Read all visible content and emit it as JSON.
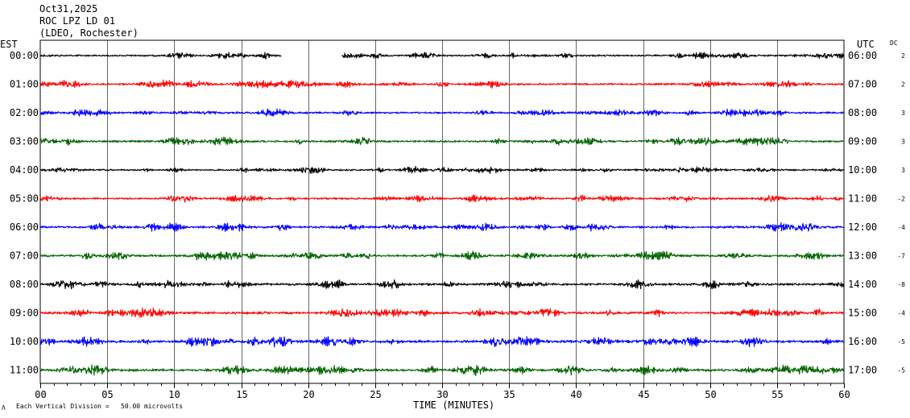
{
  "header": {
    "date": "Oct31,2025",
    "station": "ROC LPZ LD 01",
    "network": "(LDEO, Rochester)"
  },
  "labels": {
    "left_tz": "EST",
    "right_tz": "UTC",
    "dc_header": "DC",
    "xlabel": "TIME (MINUTES)",
    "footnote": "Each Vertical Division =   50.00 microvolts",
    "footnote_mark": "Λ"
  },
  "chart_data": {
    "type": "line",
    "title": "ROC LPZ LD 01",
    "xlabel": "TIME (MINUTES)",
    "ylabel": "",
    "xlim": [
      0,
      60
    ],
    "x_ticks": [
      "00",
      "05",
      "10",
      "15",
      "20",
      "25",
      "30",
      "35",
      "40",
      "45",
      "50",
      "55",
      "60"
    ],
    "grid": true,
    "trace_colors": [
      "#000000",
      "#ff0000",
      "#0000ff",
      "#006400"
    ],
    "series": [
      {
        "est": "00:00",
        "utc": "06:00",
        "dc": "2",
        "color": "#000000",
        "amp": 0.55,
        "gap": [
          18,
          22.5
        ]
      },
      {
        "est": "01:00",
        "utc": "07:00",
        "dc": "2",
        "color": "#ff0000",
        "amp": 0.65
      },
      {
        "est": "02:00",
        "utc": "08:00",
        "dc": "3",
        "color": "#0000ff",
        "amp": 0.6
      },
      {
        "est": "03:00",
        "utc": "09:00",
        "dc": "3",
        "color": "#006400",
        "amp": 0.65
      },
      {
        "est": "04:00",
        "utc": "10:00",
        "dc": "3",
        "color": "#000000",
        "amp": 0.55
      },
      {
        "est": "05:00",
        "utc": "11:00",
        "dc": "-2",
        "color": "#ff0000",
        "amp": 0.6
      },
      {
        "est": "06:00",
        "utc": "12:00",
        "dc": "-4",
        "color": "#0000ff",
        "amp": 0.7
      },
      {
        "est": "07:00",
        "utc": "13:00",
        "dc": "-7",
        "color": "#006400",
        "amp": 0.7
      },
      {
        "est": "08:00",
        "utc": "14:00",
        "dc": "-8",
        "color": "#000000",
        "amp": 0.75
      },
      {
        "est": "09:00",
        "utc": "15:00",
        "dc": "-4",
        "color": "#ff0000",
        "amp": 0.8
      },
      {
        "est": "10:00",
        "utc": "16:00",
        "dc": "-5",
        "color": "#0000ff",
        "amp": 0.85
      },
      {
        "est": "11:00",
        "utc": "17:00",
        "dc": "-5",
        "color": "#006400",
        "amp": 0.85
      }
    ]
  }
}
